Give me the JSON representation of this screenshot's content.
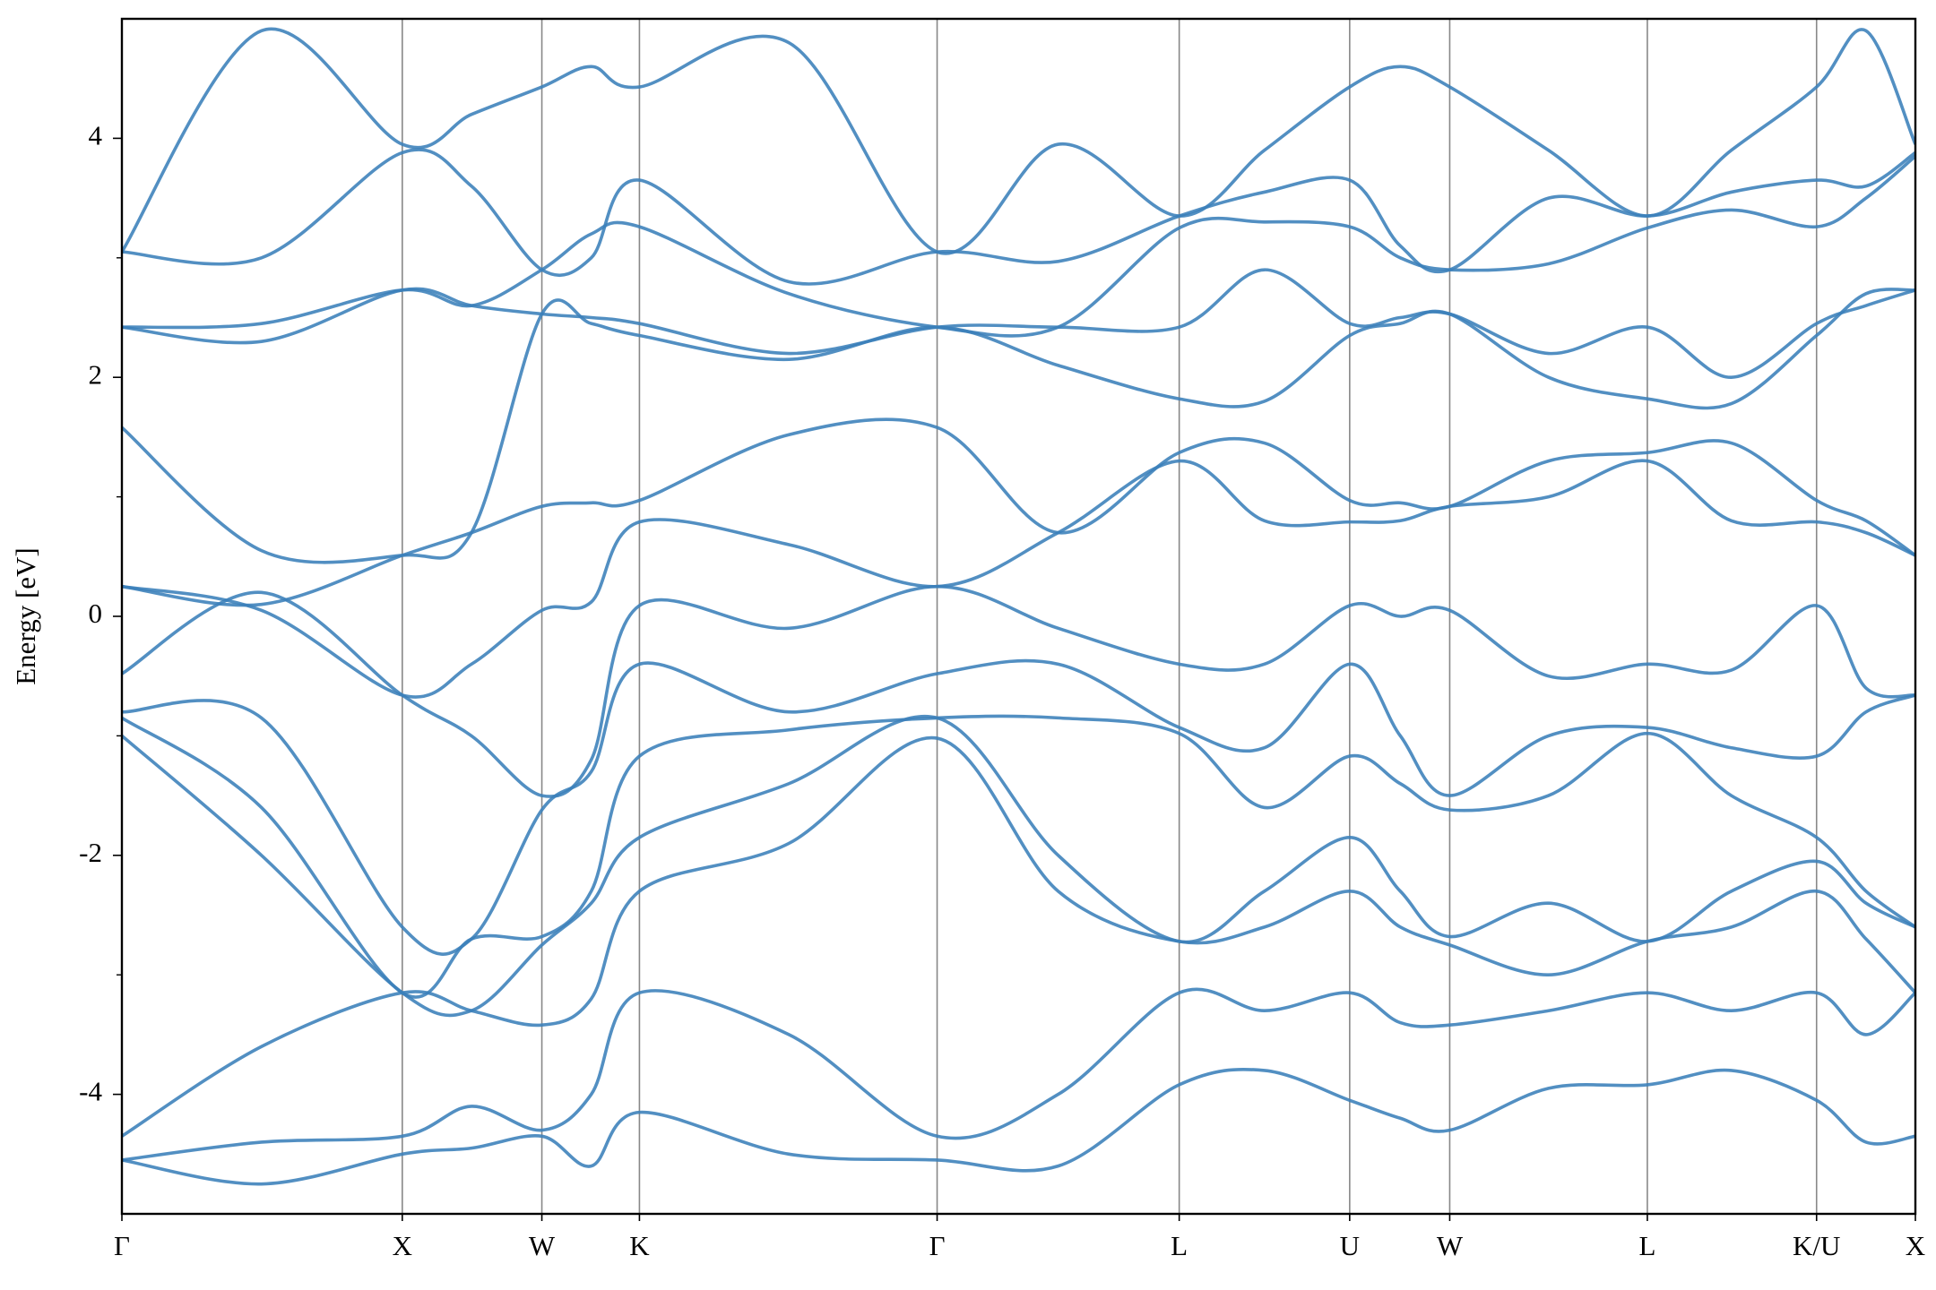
{
  "chart_data": {
    "type": "line",
    "ylabel": "Energy [eV]",
    "x": [
      0,
      113,
      227,
      283,
      340,
      380,
      419,
      540,
      660,
      758,
      856,
      925,
      994,
      1035,
      1075,
      1155,
      1235,
      1303,
      1372,
      1412,
      1452
    ],
    "xlim": [
      0,
      1452
    ],
    "xticks": [
      {
        "value": 0,
        "label": "Γ"
      },
      {
        "value": 227,
        "label": "X"
      },
      {
        "value": 340,
        "label": "W"
      },
      {
        "value": 419,
        "label": "K"
      },
      {
        "value": 660,
        "label": "Γ"
      },
      {
        "value": 856,
        "label": "L"
      },
      {
        "value": 994,
        "label": "U"
      },
      {
        "value": 1075,
        "label": "W"
      },
      {
        "value": 1235,
        "label": "L"
      },
      {
        "value": 1372,
        "label": "K/U"
      },
      {
        "value": 1452,
        "label": "X"
      }
    ],
    "ylim": [
      -5,
      5
    ],
    "yticks": [
      -4,
      -2,
      0,
      2,
      4
    ],
    "yticks_minor": [
      -3,
      -1,
      1,
      3
    ],
    "xgrid": true,
    "series": [
      {
        "color": "#3a80b9",
        "values": [
          3.05,
          4.9,
          3.95,
          4.2,
          4.43,
          4.6,
          4.43,
          4.8,
          3.05,
          3.95,
          3.35,
          3.9,
          4.43,
          4.6,
          4.43,
          3.9,
          3.35,
          3.9,
          4.43,
          4.9,
          3.95
        ]
      },
      {
        "color": "#3a80b9",
        "values": [
          3.05,
          3.0,
          3.88,
          3.6,
          2.9,
          3.0,
          3.65,
          2.8,
          3.05,
          2.97,
          3.35,
          3.55,
          3.65,
          3.1,
          2.9,
          3.5,
          3.35,
          3.55,
          3.65,
          3.6,
          3.88
        ]
      },
      {
        "color": "#3a80b9",
        "values": [
          2.42,
          2.45,
          2.73,
          2.6,
          2.9,
          3.2,
          3.26,
          2.7,
          2.42,
          2.42,
          3.25,
          3.3,
          3.26,
          3.0,
          2.9,
          2.95,
          3.25,
          3.4,
          3.26,
          3.5,
          3.85
        ]
      },
      {
        "color": "#3a80b9",
        "values": [
          2.42,
          2.3,
          2.73,
          2.6,
          2.53,
          2.5,
          2.45,
          2.2,
          2.42,
          2.42,
          2.42,
          2.9,
          2.45,
          2.5,
          2.53,
          2.2,
          2.42,
          2.0,
          2.45,
          2.6,
          2.73
        ]
      },
      {
        "color": "#3a80b9",
        "values": [
          1.58,
          0.55,
          0.51,
          0.7,
          2.53,
          2.45,
          2.35,
          2.15,
          2.42,
          2.1,
          1.82,
          1.8,
          2.35,
          2.45,
          2.53,
          2.0,
          1.82,
          1.78,
          2.35,
          2.7,
          2.73
        ]
      },
      {
        "color": "#3a80b9",
        "values": [
          0.25,
          0.1,
          0.51,
          0.7,
          0.92,
          0.95,
          0.97,
          1.52,
          1.58,
          0.7,
          1.37,
          1.45,
          0.97,
          0.95,
          0.92,
          1.3,
          1.37,
          1.45,
          0.97,
          0.8,
          0.51
        ]
      },
      {
        "color": "#3a80b9",
        "values": [
          0.25,
          0.05,
          -0.66,
          -0.4,
          0.05,
          0.12,
          0.79,
          0.6,
          0.25,
          0.7,
          1.3,
          0.8,
          0.79,
          0.8,
          0.92,
          1.0,
          1.3,
          0.8,
          0.79,
          0.7,
          0.51
        ]
      },
      {
        "color": "#3a80b9",
        "values": [
          -0.48,
          0.2,
          -0.66,
          -1.0,
          -1.5,
          -1.2,
          0.09,
          -0.1,
          0.25,
          -0.1,
          -0.4,
          -0.4,
          0.09,
          0.0,
          0.05,
          -0.5,
          -0.4,
          -0.45,
          0.09,
          -0.6,
          -0.66
        ]
      },
      {
        "color": "#3a80b9",
        "values": [
          -0.8,
          -0.85,
          -2.6,
          -2.7,
          -1.62,
          -1.3,
          -0.4,
          -0.8,
          -0.48,
          -0.4,
          -0.93,
          -1.1,
          -0.4,
          -1.0,
          -1.5,
          -1.0,
          -0.93,
          -1.1,
          -1.17,
          -0.8,
          -0.66
        ]
      },
      {
        "color": "#3a80b9",
        "values": [
          -0.85,
          -1.6,
          -3.15,
          -2.7,
          -2.68,
          -2.3,
          -1.17,
          -0.95,
          -0.85,
          -0.85,
          -0.98,
          -1.6,
          -1.17,
          -1.4,
          -1.62,
          -1.5,
          -0.98,
          -1.5,
          -1.85,
          -2.3,
          -2.6
        ]
      },
      {
        "color": "#3a80b9",
        "values": [
          -1.0,
          -2.0,
          -3.15,
          -3.3,
          -2.75,
          -2.4,
          -1.85,
          -1.4,
          -0.85,
          -2.0,
          -2.72,
          -2.3,
          -1.85,
          -2.3,
          -2.68,
          -2.4,
          -2.72,
          -2.3,
          -2.05,
          -2.4,
          -2.6
        ]
      },
      {
        "color": "#3a80b9",
        "values": [
          -4.35,
          -3.6,
          -3.15,
          -3.3,
          -3.42,
          -3.2,
          -2.3,
          -1.9,
          -1.02,
          -2.3,
          -2.72,
          -2.6,
          -2.3,
          -2.6,
          -2.75,
          -3.0,
          -2.72,
          -2.6,
          -2.3,
          -2.7,
          -3.15
        ]
      },
      {
        "color": "#3a80b9",
        "values": [
          -4.55,
          -4.4,
          -4.35,
          -4.1,
          -4.3,
          -4.0,
          -3.15,
          -3.5,
          -4.35,
          -4.0,
          -3.15,
          -3.3,
          -3.15,
          -3.4,
          -3.42,
          -3.3,
          -3.15,
          -3.3,
          -3.15,
          -3.5,
          -3.15
        ]
      },
      {
        "color": "#3a80b9",
        "values": [
          -4.55,
          -4.75,
          -4.5,
          -4.45,
          -4.35,
          -4.6,
          -4.15,
          -4.5,
          -4.55,
          -4.6,
          -3.92,
          -3.8,
          -4.05,
          -4.2,
          -4.3,
          -3.95,
          -3.92,
          -3.8,
          -4.05,
          -4.4,
          -4.35
        ]
      }
    ]
  }
}
